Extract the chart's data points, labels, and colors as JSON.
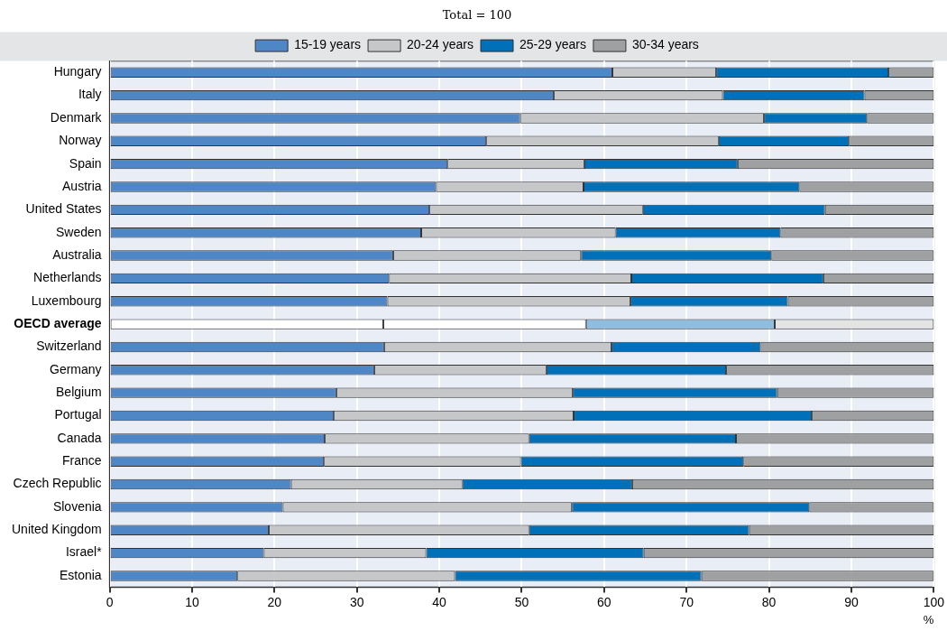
{
  "chart_data": {
    "type": "bar",
    "orientation": "horizontal",
    "stacked": true,
    "title": "Total = 100",
    "xlabel": "%",
    "categories": [
      "Hungary",
      "Italy",
      "Denmark",
      "Norway",
      "Spain",
      "Austria",
      "United States",
      "Sweden",
      "Australia",
      "Netherlands",
      "Luxembourg",
      "OECD average",
      "Switzerland",
      "Germany",
      "Belgium",
      "Portugal",
      "Canada",
      "France",
      "Czech Republic",
      "Slovenia",
      "United Kingdom",
      "Israel*",
      "Estonia"
    ],
    "series": [
      {
        "name": "15-19 years",
        "color": "#4f86c6",
        "colors": [
          "#4f86c6",
          "#4f86c6",
          "#4f86c6",
          "#4f86c6",
          "#4f86c6",
          "#4f86c6",
          "#4f86c6",
          "#4f86c6",
          "#4f86c6",
          "#4f86c6",
          "#4f86c6",
          "#ffffff",
          "#4f86c6",
          "#4f86c6",
          "#4f86c6",
          "#4f86c6",
          "#4f86c6",
          "#4f86c6",
          "#4f86c6",
          "#4f86c6",
          "#4f86c6",
          "#4f86c6",
          "#4f86c6"
        ],
        "values": [
          61.0,
          53.9,
          49.8,
          45.7,
          41.0,
          39.6,
          38.8,
          37.8,
          34.4,
          33.9,
          33.7,
          33.2,
          33.3,
          32.1,
          27.5,
          27.2,
          26.1,
          26.0,
          22.0,
          21.0,
          19.3,
          18.7,
          15.5
        ]
      },
      {
        "name": "20-24 years",
        "color": "#c6c7c8",
        "colors": [
          "#c6c7c8",
          "#c6c7c8",
          "#c6c7c8",
          "#c6c7c8",
          "#c6c7c8",
          "#c6c7c8",
          "#c6c7c8",
          "#c6c7c8",
          "#c6c7c8",
          "#c6c7c8",
          "#c6c7c8",
          "#ffffff",
          "#c6c7c8",
          "#c6c7c8",
          "#c6c7c8",
          "#c6c7c8",
          "#c6c7c8",
          "#c6c7c8",
          "#c6c7c8",
          "#c6c7c8",
          "#c6c7c8",
          "#c6c7c8",
          "#c6c7c8"
        ],
        "values": [
          12.6,
          20.5,
          29.6,
          28.2,
          16.6,
          17.9,
          25.9,
          23.6,
          22.8,
          29.4,
          29.5,
          24.6,
          27.6,
          20.9,
          28.7,
          29.1,
          24.8,
          23.9,
          20.8,
          35.1,
          31.6,
          19.7,
          26.4
        ]
      },
      {
        "name": "25-29 years",
        "color": "#0070b8",
        "colors": [
          "#0070b8",
          "#0070b8",
          "#0070b8",
          "#0070b8",
          "#0070b8",
          "#0070b8",
          "#0070b8",
          "#0070b8",
          "#0070b8",
          "#0070b8",
          "#0070b8",
          "#8fbde0",
          "#0070b8",
          "#0070b8",
          "#0070b8",
          "#0070b8",
          "#0070b8",
          "#0070b8",
          "#0070b8",
          "#0070b8",
          "#0070b8",
          "#0070b8",
          "#0070b8"
        ],
        "values": [
          20.9,
          17.2,
          12.5,
          15.8,
          18.6,
          26.2,
          22.1,
          20.0,
          23.1,
          23.3,
          19.1,
          22.9,
          18.1,
          21.8,
          24.8,
          28.9,
          25.1,
          27.0,
          20.6,
          28.8,
          26.7,
          26.4,
          29.9
        ]
      },
      {
        "name": "30-34 years",
        "color": "#9fa0a1",
        "colors": [
          "#9fa0a1",
          "#9fa0a1",
          "#9fa0a1",
          "#9fa0a1",
          "#9fa0a1",
          "#9fa0a1",
          "#9fa0a1",
          "#9fa0a1",
          "#9fa0a1",
          "#9fa0a1",
          "#9fa0a1",
          "#e4e4e4",
          "#9fa0a1",
          "#9fa0a1",
          "#9fa0a1",
          "#9fa0a1",
          "#9fa0a1",
          "#9fa0a1",
          "#9fa0a1",
          "#9fa0a1",
          "#9fa0a1",
          "#9fa0a1",
          "#9fa0a1"
        ],
        "values": [
          5.5,
          8.4,
          8.1,
          10.3,
          23.8,
          16.3,
          13.2,
          18.6,
          19.7,
          13.4,
          17.7,
          19.3,
          21.0,
          25.2,
          19.0,
          14.8,
          24.0,
          23.1,
          36.6,
          15.1,
          22.4,
          35.2,
          28.2
        ]
      }
    ],
    "xlim": [
      0,
      100
    ],
    "xticks": [
      0,
      10,
      20,
      30,
      40,
      50,
      60,
      70,
      80,
      90,
      100
    ],
    "grid": "x",
    "legend": "top"
  }
}
